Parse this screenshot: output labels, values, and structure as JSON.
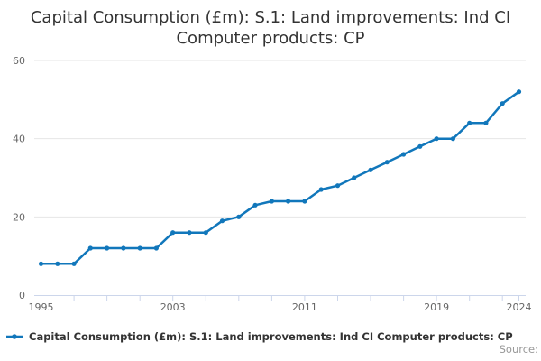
{
  "title": {
    "line1": "Capital Consumption (£m): S.1: Land improvements: Ind CI",
    "line2": "Computer products: CP"
  },
  "legend": {
    "label": "Capital Consumption (£m): S.1: Land improvements: Ind CI Computer products: CP"
  },
  "credits": {
    "label": "Source:"
  },
  "colors": {
    "series": "#1177bb",
    "grid": "#e6e6e6",
    "axis_line": "#ccd6eb",
    "tick": "#ccd6eb",
    "axis_label": "#666666",
    "title_text": "#333333",
    "legend_text": "#333333",
    "credits_text": "#999999"
  },
  "chart_data": {
    "type": "line",
    "title": "Capital Consumption (£m): S.1: Land improvements: Ind CI Computer products: CP",
    "x": [
      1995,
      1996,
      1997,
      1998,
      1999,
      2000,
      2001,
      2002,
      2003,
      2004,
      2005,
      2006,
      2007,
      2008,
      2009,
      2010,
      2011,
      2012,
      2013,
      2014,
      2015,
      2016,
      2017,
      2018,
      2019,
      2020,
      2021,
      2022,
      2023,
      2024
    ],
    "series": [
      {
        "name": "Capital Consumption (£m): S.1: Land improvements: Ind CI Computer products: CP",
        "values": [
          8,
          8,
          8,
          12,
          12,
          12,
          12,
          12,
          16,
          16,
          16,
          19,
          20,
          23,
          24,
          24,
          24,
          27,
          28,
          30,
          32,
          34,
          36,
          38,
          40,
          40,
          44,
          44,
          49,
          52
        ]
      }
    ],
    "xlabel": "",
    "ylabel": "",
    "ylim": [
      0,
      60
    ],
    "yticks": [
      0,
      20,
      40,
      60
    ],
    "ytick_labels": [
      "0",
      "20",
      "40",
      "60"
    ],
    "xticks_labeled": [
      1995,
      2003,
      2011,
      2019,
      2024
    ],
    "xtick_labels": [
      "1995",
      "2003",
      "2011",
      "2019",
      "2024"
    ],
    "xtick_minor_interval": 2,
    "grid": true,
    "legend_position": "bottom-left",
    "marker": "circle"
  }
}
